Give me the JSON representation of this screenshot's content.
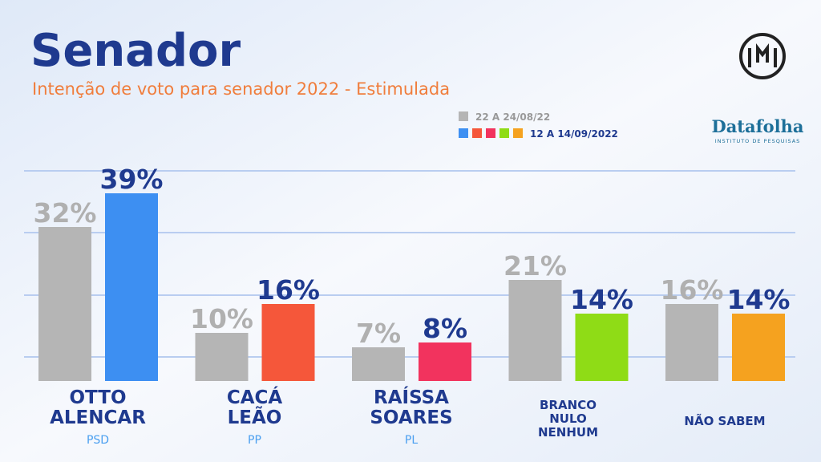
{
  "chart_data": {
    "type": "bar",
    "title": "Senador",
    "subtitle": "Intenção de voto para senador 2022 - Estimulada",
    "source": "Datafolha",
    "source_subtitle": "INSTITUTO DE PESQUISAS",
    "categories": [
      [
        "OTTO",
        "ALENCAR"
      ],
      [
        "CACÁ",
        "LEÃO"
      ],
      [
        "RAÍSSA",
        "SOARES"
      ],
      [
        "BRANCO",
        "NULO",
        "NENHUM"
      ],
      [
        "NÃO SABEM"
      ]
    ],
    "parties": [
      "PSD",
      "PP",
      "PL",
      null,
      null
    ],
    "ylim": [
      0,
      40
    ],
    "series": [
      {
        "name": "22 A 24/08/22",
        "color": "#b5b5b5",
        "values": [
          32,
          10,
          7,
          21,
          16
        ],
        "value_labels": [
          "32%",
          "10%",
          "7%",
          "21%",
          "16%"
        ]
      },
      {
        "name": "12 A 14/09/2022",
        "colors": [
          "#3d8ff2",
          "#f5573a",
          "#f2335e",
          "#8fdc16",
          "#f5a21f"
        ],
        "values": [
          39,
          16,
          8,
          14,
          14
        ],
        "value_labels": [
          "39%",
          "16%",
          "8%",
          "14%",
          "14%"
        ]
      }
    ]
  }
}
